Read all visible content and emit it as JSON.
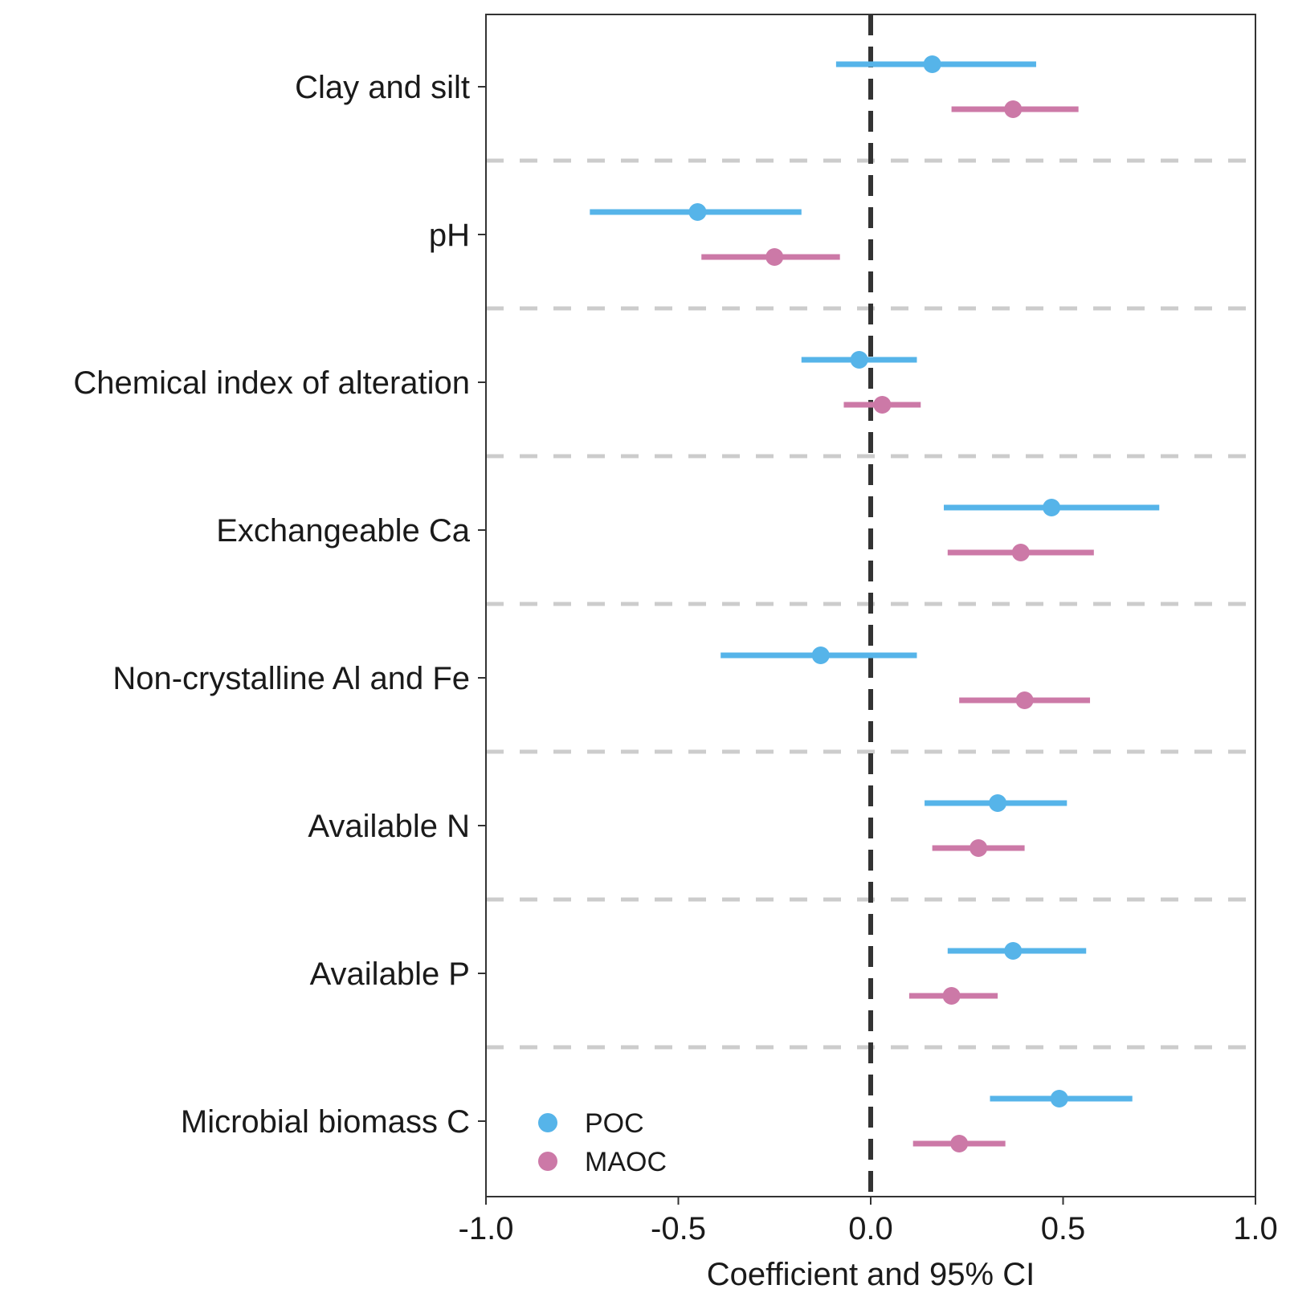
{
  "chart_data": {
    "type": "forest",
    "xlabel": "Coefficient and 95% CI",
    "xlim": [
      -1.0,
      1.0
    ],
    "x_ticks": [
      "-1.0",
      "-0.5",
      "0.0",
      "0.5",
      "1.0"
    ],
    "x_tick_values": [
      -1.0,
      -0.5,
      0.0,
      0.5,
      1.0
    ],
    "reference_line": 0.0,
    "grid": "dashed separators between categories",
    "legend_position": "bottom-left",
    "categories": [
      "Clay and silt",
      "pH",
      "Chemical index of alteration",
      "Exchangeable Ca",
      "Non-crystalline Al and Fe",
      "Available N",
      "Available P",
      "Microbial biomass C"
    ],
    "series": [
      {
        "name": "POC",
        "color": "#56B4E9",
        "estimate": [
          0.16,
          -0.45,
          -0.03,
          0.47,
          -0.13,
          0.33,
          0.37,
          0.49
        ],
        "lower": [
          -0.09,
          -0.73,
          -0.18,
          0.19,
          -0.39,
          0.14,
          0.2,
          0.31
        ],
        "upper": [
          0.43,
          -0.18,
          0.12,
          0.75,
          0.12,
          0.51,
          0.56,
          0.68
        ]
      },
      {
        "name": "MAOC",
        "color": "#CC79A7",
        "estimate": [
          0.37,
          -0.25,
          0.03,
          0.39,
          0.4,
          0.28,
          0.21,
          0.23
        ],
        "lower": [
          0.21,
          -0.44,
          -0.07,
          0.2,
          0.23,
          0.16,
          0.1,
          0.11
        ],
        "upper": [
          0.54,
          -0.08,
          0.13,
          0.58,
          0.57,
          0.4,
          0.33,
          0.35
        ]
      }
    ]
  }
}
